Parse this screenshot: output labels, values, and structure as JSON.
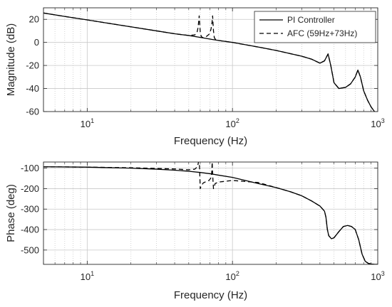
{
  "colors": {
    "grid": "#c8c8c8",
    "axis": "#262626",
    "line": "#000000"
  },
  "legend": {
    "placement": "top-right",
    "entries": [
      "PI Controller",
      "AFC (59Hz+73Hz)"
    ]
  },
  "chart_data": [
    {
      "type": "line",
      "xscale": "log",
      "xlabel": "Frequency (Hz)",
      "ylabel": "Magnitude (dB)",
      "xlim": [
        5,
        1000
      ],
      "ylim": [
        -60,
        30
      ],
      "xtick_labels": [
        {
          "base": "10",
          "exp": "1",
          "x": 10
        },
        {
          "base": "10",
          "exp": "2",
          "x": 100
        },
        {
          "base": "10",
          "exp": "3",
          "x": 1000
        }
      ],
      "ytick_values": [
        -60,
        -40,
        -20,
        0,
        20
      ],
      "grid": true,
      "series": [
        {
          "name": "PI Controller",
          "style": "solid",
          "x": [
            5,
            7,
            10,
            15,
            20,
            30,
            40,
            50,
            59,
            73,
            80,
            100,
            150,
            200,
            300,
            350,
            400,
            430,
            455,
            475,
            500,
            540,
            600,
            650,
            700,
            730,
            760,
            800,
            850,
            900,
            950,
            1000
          ],
          "y": [
            25.5,
            22.5,
            19.5,
            16,
            13.5,
            10,
            7.5,
            6,
            4.5,
            2.5,
            1.7,
            0,
            -4,
            -7,
            -12,
            -14.5,
            -18,
            -16,
            -10,
            -20,
            -35,
            -40,
            -39,
            -36,
            -30,
            -24,
            -30,
            -42,
            -50,
            -56,
            -60,
            -62
          ]
        },
        {
          "name": "AFC (59Hz+73Hz)",
          "style": "dashed",
          "x": [
            5,
            7,
            10,
            15,
            20,
            30,
            40,
            50,
            55,
            57,
            58,
            59,
            60,
            61,
            63,
            66,
            69,
            71,
            72,
            73,
            74,
            75,
            77,
            80,
            100,
            150,
            200,
            300,
            350,
            400,
            430,
            455,
            475,
            500,
            540,
            600,
            650,
            700,
            730,
            760,
            800,
            850,
            900,
            950,
            1000
          ],
          "y": [
            25.5,
            22.5,
            19.5,
            16,
            13.5,
            10,
            7.5,
            6,
            6.5,
            8.5,
            13,
            23,
            9,
            5,
            4,
            5,
            7,
            11,
            15,
            23,
            10,
            4,
            2,
            1.7,
            0,
            -4,
            -7,
            -12,
            -14.5,
            -18,
            -16,
            -10,
            -20,
            -35,
            -40,
            -39,
            -36,
            -30,
            -24,
            -30,
            -42,
            -50,
            -56,
            -60,
            -62
          ]
        }
      ]
    },
    {
      "type": "line",
      "xscale": "log",
      "xlabel": "Frequency (Hz)",
      "ylabel": "Phase (deg)",
      "xlim": [
        5,
        1000
      ],
      "ylim": [
        -570,
        -70
      ],
      "xtick_labels": [
        {
          "base": "10",
          "exp": "1",
          "x": 10
        },
        {
          "base": "10",
          "exp": "2",
          "x": 100
        },
        {
          "base": "10",
          "exp": "3",
          "x": 1000
        }
      ],
      "ytick_values": [
        -500,
        -400,
        -300,
        -200,
        -100
      ],
      "grid": true,
      "series": [
        {
          "name": "PI Controller",
          "style": "solid",
          "x": [
            5,
            10,
            20,
            30,
            40,
            50,
            60,
            70,
            80,
            100,
            150,
            200,
            250,
            300,
            350,
            400,
            430,
            440,
            450,
            460,
            480,
            500,
            540,
            580,
            620,
            660,
            700,
            740,
            780,
            820,
            860,
            900,
            950,
            1000
          ],
          "y": [
            -93,
            -95,
            -100,
            -105,
            -110,
            -115,
            -121,
            -127,
            -134,
            -145,
            -175,
            -195,
            -215,
            -235,
            -260,
            -285,
            -310,
            -340,
            -400,
            -430,
            -445,
            -440,
            -410,
            -385,
            -380,
            -385,
            -400,
            -450,
            -520,
            -555,
            -565,
            -568,
            -570,
            -570
          ]
        },
        {
          "name": "AFC (59Hz+73Hz)",
          "style": "dashed",
          "x": [
            5,
            10,
            20,
            30,
            40,
            50,
            55,
            57,
            58,
            59,
            59.5,
            60,
            61,
            63,
            66,
            69,
            71,
            72,
            72.5,
            73,
            74,
            76,
            80,
            100,
            150,
            200,
            250,
            300,
            350,
            400,
            430,
            440,
            450,
            460,
            480,
            500,
            540,
            580,
            620,
            660,
            700,
            740,
            780,
            820,
            860,
            900,
            950,
            1000
          ],
          "y": [
            -93,
            -95,
            -98,
            -101,
            -104,
            -108,
            -105,
            -95,
            -80,
            -50,
            -120,
            -200,
            -185,
            -172,
            -165,
            -160,
            -148,
            -120,
            -70,
            -130,
            -200,
            -175,
            -168,
            -160,
            -170,
            -195,
            -215,
            -235,
            -260,
            -285,
            -310,
            -340,
            -400,
            -430,
            -445,
            -440,
            -410,
            -385,
            -380,
            -385,
            -400,
            -450,
            -520,
            -555,
            -565,
            -568,
            -570,
            -570
          ]
        }
      ]
    }
  ]
}
